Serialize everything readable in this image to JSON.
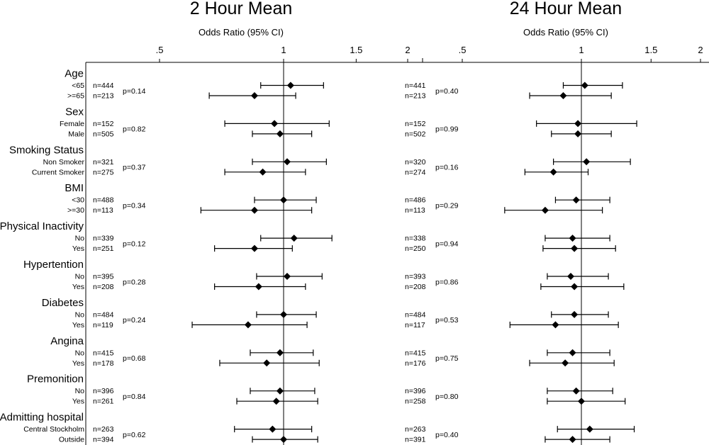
{
  "chart_data": {
    "type": "forest",
    "x_scale": "log",
    "xlim": [
      0.39,
      2.05
    ],
    "ticks": [
      {
        "value": 0.5,
        "label": ".5"
      },
      {
        "value": 1,
        "label": "1"
      },
      {
        "value": 1.5,
        "label": "1.5"
      },
      {
        "value": 2,
        "label": "2"
      }
    ],
    "reference_value": 1,
    "xlabel": "Odds Ratio (95% CI)",
    "panels": [
      {
        "title": "2 Hour Mean",
        "groups": [
          {
            "variable": "Age",
            "p": "p=0.14",
            "rows": [
              {
                "label": "<65",
                "n": "n=444",
                "or": 1.04,
                "lo": 0.88,
                "hi": 1.25
              },
              {
                "label": ">=65",
                "n": "n=213",
                "or": 0.85,
                "lo": 0.66,
                "hi": 1.07
              }
            ]
          },
          {
            "variable": "Sex",
            "p": "p=0.82",
            "rows": [
              {
                "label": "Female",
                "n": "n=152",
                "or": 0.95,
                "lo": 0.72,
                "hi": 1.29
              },
              {
                "label": "Male",
                "n": "n=505",
                "or": 0.98,
                "lo": 0.84,
                "hi": 1.17
              }
            ]
          },
          {
            "variable": "Smoking Status",
            "p": "p=0.37",
            "rows": [
              {
                "label": "Non Smoker",
                "n": "n=321",
                "or": 1.02,
                "lo": 0.84,
                "hi": 1.27
              },
              {
                "label": "Current Smoker",
                "n": "n=275",
                "or": 0.89,
                "lo": 0.72,
                "hi": 1.13
              }
            ]
          },
          {
            "variable": "BMI",
            "p": "p=0.34",
            "rows": [
              {
                "label": "<30",
                "n": "n=488",
                "or": 1.0,
                "lo": 0.85,
                "hi": 1.2
              },
              {
                "label": ">=30",
                "n": "n=113",
                "or": 0.85,
                "lo": 0.63,
                "hi": 1.17
              }
            ]
          },
          {
            "variable": "Physical Inactivity",
            "p": "p=0.12",
            "rows": [
              {
                "label": "No",
                "n": "n=339",
                "or": 1.06,
                "lo": 0.88,
                "hi": 1.31
              },
              {
                "label": "Yes",
                "n": "n=251",
                "or": 0.85,
                "lo": 0.68,
                "hi": 1.05
              }
            ]
          },
          {
            "variable": "Hypertention",
            "p": "p=0.28",
            "rows": [
              {
                "label": "No",
                "n": "n=395",
                "or": 1.02,
                "lo": 0.86,
                "hi": 1.24
              },
              {
                "label": "Yes",
                "n": "n=208",
                "or": 0.87,
                "lo": 0.68,
                "hi": 1.13
              }
            ]
          },
          {
            "variable": "Diabetes",
            "p": "p=0.24",
            "rows": [
              {
                "label": "No",
                "n": "n=484",
                "or": 1.0,
                "lo": 0.86,
                "hi": 1.2
              },
              {
                "label": "Yes",
                "n": "n=119",
                "or": 0.82,
                "lo": 0.6,
                "hi": 1.14
              }
            ]
          },
          {
            "variable": "Angina",
            "p": "p=0.68",
            "rows": [
              {
                "label": "No",
                "n": "n=415",
                "or": 0.98,
                "lo": 0.83,
                "hi": 1.18
              },
              {
                "label": "Yes",
                "n": "n=178",
                "or": 0.91,
                "lo": 0.7,
                "hi": 1.22
              }
            ]
          },
          {
            "variable": "Premonition",
            "p": "p=0.84",
            "rows": [
              {
                "label": "No",
                "n": "n=396",
                "or": 0.98,
                "lo": 0.83,
                "hi": 1.19
              },
              {
                "label": "Yes",
                "n": "n=261",
                "or": 0.96,
                "lo": 0.77,
                "hi": 1.21
              }
            ]
          },
          {
            "variable": "Admitting hospital",
            "p": "p=0.62",
            "rows": [
              {
                "label": "Central Stockholm",
                "n": "n=263",
                "or": 0.94,
                "lo": 0.76,
                "hi": 1.17
              },
              {
                "label": "Outside",
                "n": "n=394",
                "or": 1.0,
                "lo": 0.84,
                "hi": 1.21
              }
            ]
          }
        ]
      },
      {
        "title": "24 Hour Mean",
        "groups": [
          {
            "variable": "Age",
            "p": "p=0.40",
            "rows": [
              {
                "n": "n=441",
                "or": 1.02,
                "lo": 0.9,
                "hi": 1.27
              },
              {
                "n": "n=213",
                "or": 0.9,
                "lo": 0.74,
                "hi": 1.19
              }
            ]
          },
          {
            "variable": "Sex",
            "p": "p=0.99",
            "rows": [
              {
                "n": "n=152",
                "or": 0.98,
                "lo": 0.77,
                "hi": 1.38
              },
              {
                "n": "n=502",
                "or": 0.98,
                "lo": 0.84,
                "hi": 1.19
              }
            ]
          },
          {
            "variable": "Smoking Status",
            "p": "p=0.16",
            "rows": [
              {
                "n": "n=320",
                "or": 1.03,
                "lo": 0.85,
                "hi": 1.33
              },
              {
                "n": "n=274",
                "or": 0.85,
                "lo": 0.72,
                "hi": 1.04
              }
            ]
          },
          {
            "variable": "BMI",
            "p": "p=0.29",
            "rows": [
              {
                "n": "n=486",
                "or": 0.97,
                "lo": 0.86,
                "hi": 1.18
              },
              {
                "n": "n=113",
                "or": 0.81,
                "lo": 0.64,
                "hi": 1.13
              }
            ]
          },
          {
            "variable": "Physical Inactivity",
            "p": "p=0.94",
            "rows": [
              {
                "n": "n=338",
                "or": 0.95,
                "lo": 0.81,
                "hi": 1.18
              },
              {
                "n": "n=250",
                "or": 0.96,
                "lo": 0.8,
                "hi": 1.22
              }
            ]
          },
          {
            "variable": "Hypertention",
            "p": "p=0.86",
            "rows": [
              {
                "n": "n=393",
                "or": 0.94,
                "lo": 0.82,
                "hi": 1.17
              },
              {
                "n": "n=208",
                "or": 0.96,
                "lo": 0.79,
                "hi": 1.28
              }
            ]
          },
          {
            "variable": "Diabetes",
            "p": "p=0.53",
            "rows": [
              {
                "n": "n=484",
                "or": 0.96,
                "lo": 0.84,
                "hi": 1.17
              },
              {
                "n": "n=117",
                "or": 0.86,
                "lo": 0.66,
                "hi": 1.24
              }
            ]
          },
          {
            "variable": "Angina",
            "p": "p=0.75",
            "rows": [
              {
                "n": "n=415",
                "or": 0.95,
                "lo": 0.82,
                "hi": 1.18
              },
              {
                "n": "n=176",
                "or": 0.91,
                "lo": 0.74,
                "hi": 1.21
              }
            ]
          },
          {
            "variable": "Premonition",
            "p": "p=0.80",
            "rows": [
              {
                "n": "n=396",
                "or": 0.97,
                "lo": 0.82,
                "hi": 1.2
              },
              {
                "n": "n=258",
                "or": 1.0,
                "lo": 0.82,
                "hi": 1.29
              }
            ]
          },
          {
            "variable": "Admitting hospital",
            "p": "p=0.40",
            "rows": [
              {
                "n": "n=263",
                "or": 1.05,
                "lo": 0.87,
                "hi": 1.36
              },
              {
                "n": "n=391",
                "or": 0.95,
                "lo": 0.81,
                "hi": 1.18
              }
            ]
          }
        ]
      }
    ]
  }
}
